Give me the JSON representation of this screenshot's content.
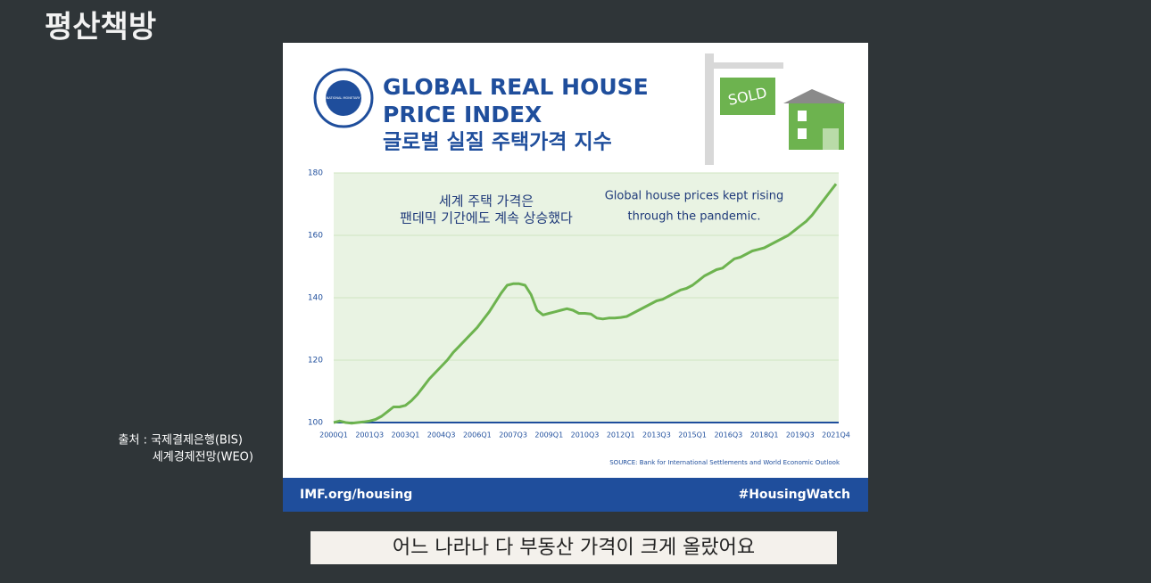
{
  "chart_data": {
    "type": "line",
    "title": "GLOBAL REAL HOUSE PRICE INDEX",
    "subtitle": "글로벌 실질 주택가격 지수",
    "annotations": [
      "세계 주택 가격은",
      "팬데믹 기간에도 계속 상승했다",
      "Global house prices kept rising",
      "through the pandemic."
    ],
    "source": "SOURCE: Bank for International Settlements and World Economic Outlook",
    "categories": [
      "2000Q1",
      null,
      null,
      null,
      null,
      null,
      "2001Q3",
      null,
      null,
      null,
      null,
      null,
      "2003Q1",
      null,
      null,
      null,
      null,
      null,
      "2004Q3",
      null,
      null,
      null,
      null,
      null,
      "2006Q1",
      null,
      null,
      null,
      null,
      null,
      "2007Q3",
      null,
      null,
      null,
      null,
      null,
      "2009Q1",
      null,
      null,
      null,
      null,
      null,
      "2010Q3",
      null,
      null,
      null,
      null,
      null,
      "2012Q1",
      null,
      null,
      null,
      null,
      null,
      "2013Q3",
      null,
      null,
      null,
      null,
      null,
      "2015Q1",
      null,
      null,
      null,
      null,
      null,
      "2016Q3",
      null,
      null,
      null,
      null,
      null,
      "2018Q1",
      null,
      null,
      null,
      null,
      null,
      "2019Q3",
      null,
      null,
      null,
      null,
      null,
      "2021Q4"
    ],
    "values": [
      100,
      100.5,
      100,
      99.8,
      100,
      100.2,
      100.5,
      101,
      102,
      103.5,
      105,
      105,
      105.5,
      107,
      109,
      111.5,
      114,
      116,
      118,
      120,
      122.5,
      124.5,
      126.5,
      128.5,
      130.5,
      133,
      135.5,
      138.5,
      141.5,
      144,
      144.5,
      144.5,
      144,
      141,
      136,
      134.5,
      135,
      135.5,
      136,
      136.5,
      136,
      135,
      135,
      134.8,
      133.5,
      133.2,
      133.5,
      133.5,
      133.7,
      134,
      135,
      136,
      137,
      138,
      139,
      139.5,
      140.5,
      141.5,
      142.5,
      143,
      144,
      145.5,
      147,
      148,
      149,
      149.5,
      151,
      152.5,
      153,
      154,
      155,
      155.5,
      156,
      157,
      158,
      159,
      160,
      161.5,
      163,
      164.5,
      166.5,
      169,
      171.5,
      174,
      176.5
    ],
    "color": "#6db34f",
    "ylim": [
      100,
      180
    ],
    "yticks": [
      100,
      120,
      140,
      160,
      180
    ],
    "grid": true
  },
  "card": {
    "logo_text": "INTERNATIONAL MONETARY FUND",
    "sign": "SOLD",
    "footer_left": "IMF.org/housing",
    "footer_right": "#HousingWatch"
  },
  "overlay": {
    "logo": "평산책방",
    "source_note": [
      "출처 : 국제결제은행(BIS)",
      "세계경제전망(WEO)"
    ],
    "caption": "어느 나라나 다 부동산 가격이 크게 올랐어요"
  }
}
